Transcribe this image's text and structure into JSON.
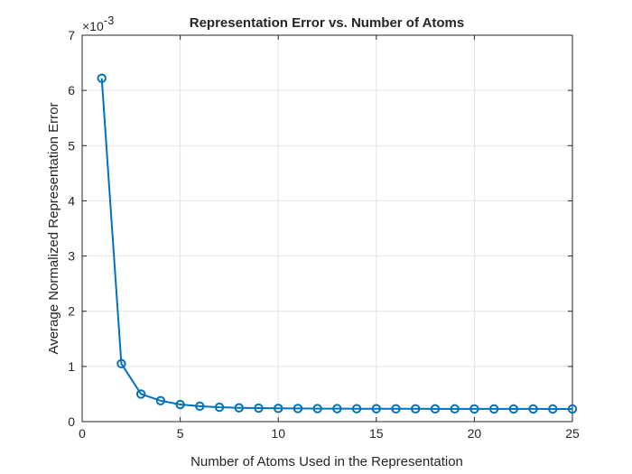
{
  "chart_data": {
    "type": "line",
    "title": "Representation Error vs. Number of Atoms",
    "xlabel": "Number of Atoms Used in the Representation",
    "ylabel": "Average Normalized Representation Error",
    "y_exponent_label": "×10",
    "y_exponent_value": "-3",
    "xlim": [
      0,
      25
    ],
    "ylim": [
      0,
      7
    ],
    "x_ticks": [
      0,
      5,
      10,
      15,
      20,
      25
    ],
    "y_ticks": [
      0,
      1,
      2,
      3,
      4,
      5,
      6,
      7
    ],
    "grid": true,
    "marker": "circle",
    "line_color": "#0072BD",
    "series": [
      {
        "x": [
          1,
          2,
          3,
          4,
          5,
          6,
          7,
          8,
          9,
          10,
          11,
          12,
          13,
          14,
          15,
          16,
          17,
          18,
          19,
          20,
          21,
          22,
          23,
          24,
          25
        ],
        "values": [
          6.22,
          1.05,
          0.5,
          0.38,
          0.31,
          0.28,
          0.26,
          0.25,
          0.245,
          0.24,
          0.238,
          0.236,
          0.235,
          0.234,
          0.233,
          0.232,
          0.232,
          0.231,
          0.231,
          0.23,
          0.23,
          0.23,
          0.23,
          0.229,
          0.229
        ]
      }
    ]
  }
}
